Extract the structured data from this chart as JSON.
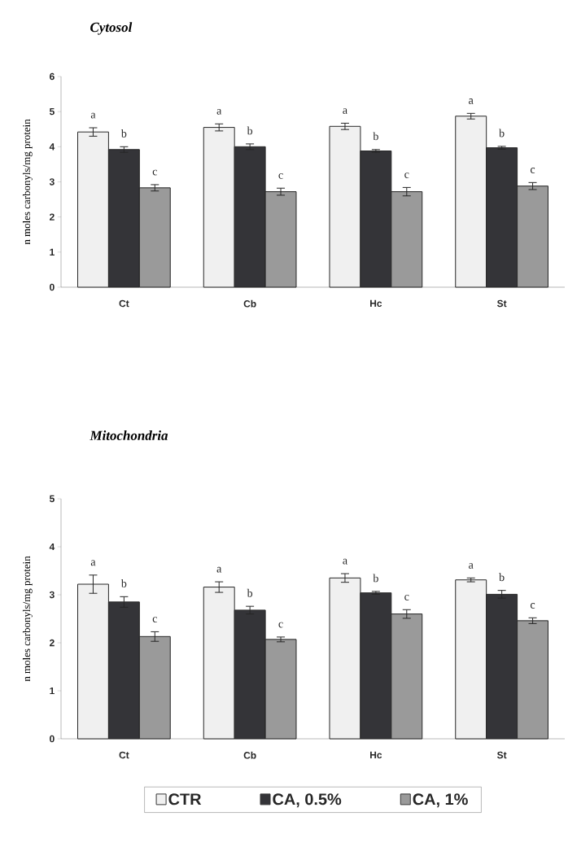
{
  "chart_data": [
    {
      "type": "bar",
      "title": "Cytosol",
      "ylabel": "n moles carbonyls/mg protein",
      "categories": [
        "Ct",
        "Cb",
        "Hc",
        "St"
      ],
      "ylim": [
        0,
        6
      ],
      "yticks": [
        0,
        1,
        2,
        3,
        4,
        5,
        6
      ],
      "legend": false,
      "series": [
        {
          "color": "#f0f0f0",
          "values": [
            4.42,
            4.55,
            4.58,
            4.87
          ],
          "errors": [
            0.12,
            0.1,
            0.09,
            0.08
          ]
        },
        {
          "color": "#343438",
          "values": [
            3.92,
            4.0,
            3.88,
            3.97
          ],
          "errors": [
            0.08,
            0.08,
            0.04,
            0.04
          ]
        },
        {
          "color": "#9a9a9a",
          "values": [
            2.83,
            2.72,
            2.72,
            2.88
          ],
          "errors": [
            0.09,
            0.1,
            0.12,
            0.1
          ]
        }
      ],
      "annotations": [
        "a",
        "b",
        "c",
        "a",
        "b",
        "c",
        "a",
        "b",
        "c",
        "a",
        "b",
        "c"
      ]
    },
    {
      "type": "bar",
      "title": "Mitochondria",
      "ylabel": "n moles carbonyls/mg protein",
      "categories": [
        "Ct",
        "Cb",
        "Hc",
        "St"
      ],
      "ylim": [
        0,
        5
      ],
      "yticks": [
        0,
        1,
        2,
        3,
        4,
        5
      ],
      "legend": "bottom",
      "series": [
        {
          "name": "CTR",
          "color": "#f0f0f0",
          "values": [
            3.22,
            3.16,
            3.35,
            3.31
          ],
          "errors": [
            0.19,
            0.11,
            0.09,
            0.04
          ]
        },
        {
          "name": "CA,  0.5%",
          "color": "#343438",
          "values": [
            2.85,
            2.68,
            3.04,
            3.01
          ],
          "errors": [
            0.11,
            0.08,
            0.03,
            0.08
          ]
        },
        {
          "name": "CA, 1%",
          "color": "#9a9a9a",
          "values": [
            2.13,
            2.07,
            2.6,
            2.46
          ],
          "errors": [
            0.1,
            0.05,
            0.09,
            0.06
          ]
        }
      ],
      "annotations": [
        "a",
        "b",
        "c",
        "a",
        "b",
        "c",
        "a",
        "b",
        "c",
        "a",
        "b",
        "c"
      ]
    }
  ]
}
